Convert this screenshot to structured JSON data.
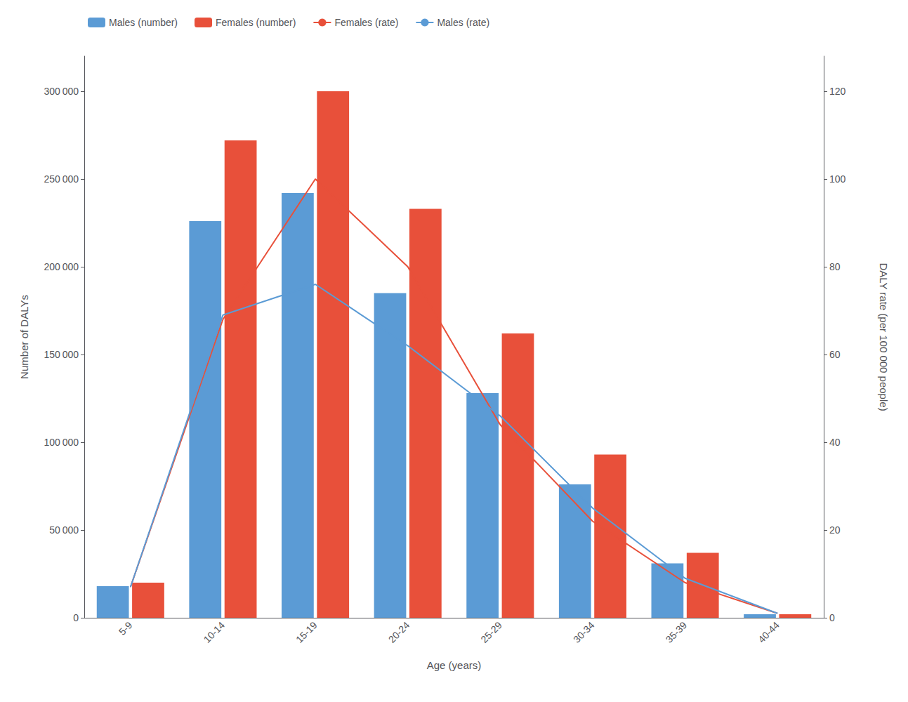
{
  "chart_data": {
    "type": "bar",
    "categories": [
      "5-9",
      "10-14",
      "15-19",
      "20-24",
      "25-29",
      "30-34",
      "35-39",
      "40-44"
    ],
    "x_label": "Age (years)",
    "y_label": "Number of DALYs",
    "y2_label": "DALY rate (per 100 000 people)",
    "series": [
      {
        "name": "Males (number)",
        "type": "bar",
        "color": "#5B9BD5",
        "values": [
          18000,
          226000,
          242000,
          185000,
          128000,
          76000,
          31000,
          2000
        ]
      },
      {
        "name": "Females (number)",
        "type": "bar",
        "color": "#E8503A",
        "values": [
          20000,
          272000,
          300000,
          233000,
          162000,
          93000,
          37000,
          2000
        ]
      },
      {
        "name": "Females (rate)",
        "type": "line",
        "axis": "y2",
        "color": "#E8503A",
        "values": [
          7,
          68,
          100,
          80,
          44,
          22,
          8,
          1
        ]
      },
      {
        "name": "Males (rate)",
        "type": "line",
        "axis": "y2",
        "color": "#5B9BD5",
        "values": [
          7,
          69,
          76,
          62,
          46,
          25,
          9,
          1
        ]
      }
    ],
    "ylim": [
      0,
      320000
    ],
    "yticks": [
      0,
      {
        "value": 50000,
        "label": "50 000"
      },
      {
        "value": 100000,
        "label": "100 000"
      },
      {
        "value": 150000,
        "label": "150 000"
      },
      {
        "value": 200000,
        "label": "200 000"
      },
      {
        "value": 250000,
        "label": "250 000"
      },
      {
        "value": 300000,
        "label": "300 000"
      }
    ],
    "y2lim": [
      0,
      128
    ],
    "y2ticks": [
      0,
      20,
      40,
      60,
      80,
      100,
      120
    ],
    "grid": false,
    "legend": "upper left"
  }
}
